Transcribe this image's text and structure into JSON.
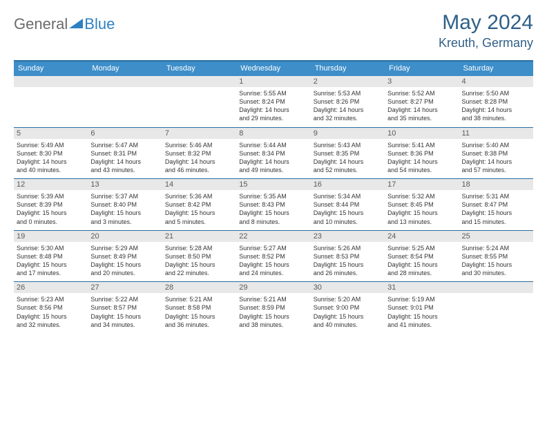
{
  "brand": {
    "part1": "General",
    "part2": "Blue"
  },
  "colors": {
    "header_bg": "#3d8ec9",
    "header_border": "#2b6ca0",
    "date_bg": "#e8e8e8",
    "title_color": "#2f5f88"
  },
  "title": "May 2024",
  "location": "Kreuth, Germany",
  "day_names": [
    "Sunday",
    "Monday",
    "Tuesday",
    "Wednesday",
    "Thursday",
    "Friday",
    "Saturday"
  ],
  "weeks": [
    [
      {
        "date": "",
        "sunrise": "",
        "sunset": "",
        "daylight1": "",
        "daylight2": ""
      },
      {
        "date": "",
        "sunrise": "",
        "sunset": "",
        "daylight1": "",
        "daylight2": ""
      },
      {
        "date": "",
        "sunrise": "",
        "sunset": "",
        "daylight1": "",
        "daylight2": ""
      },
      {
        "date": "1",
        "sunrise": "Sunrise: 5:55 AM",
        "sunset": "Sunset: 8:24 PM",
        "daylight1": "Daylight: 14 hours",
        "daylight2": "and 29 minutes."
      },
      {
        "date": "2",
        "sunrise": "Sunrise: 5:53 AM",
        "sunset": "Sunset: 8:26 PM",
        "daylight1": "Daylight: 14 hours",
        "daylight2": "and 32 minutes."
      },
      {
        "date": "3",
        "sunrise": "Sunrise: 5:52 AM",
        "sunset": "Sunset: 8:27 PM",
        "daylight1": "Daylight: 14 hours",
        "daylight2": "and 35 minutes."
      },
      {
        "date": "4",
        "sunrise": "Sunrise: 5:50 AM",
        "sunset": "Sunset: 8:28 PM",
        "daylight1": "Daylight: 14 hours",
        "daylight2": "and 38 minutes."
      }
    ],
    [
      {
        "date": "5",
        "sunrise": "Sunrise: 5:49 AM",
        "sunset": "Sunset: 8:30 PM",
        "daylight1": "Daylight: 14 hours",
        "daylight2": "and 40 minutes."
      },
      {
        "date": "6",
        "sunrise": "Sunrise: 5:47 AM",
        "sunset": "Sunset: 8:31 PM",
        "daylight1": "Daylight: 14 hours",
        "daylight2": "and 43 minutes."
      },
      {
        "date": "7",
        "sunrise": "Sunrise: 5:46 AM",
        "sunset": "Sunset: 8:32 PM",
        "daylight1": "Daylight: 14 hours",
        "daylight2": "and 46 minutes."
      },
      {
        "date": "8",
        "sunrise": "Sunrise: 5:44 AM",
        "sunset": "Sunset: 8:34 PM",
        "daylight1": "Daylight: 14 hours",
        "daylight2": "and 49 minutes."
      },
      {
        "date": "9",
        "sunrise": "Sunrise: 5:43 AM",
        "sunset": "Sunset: 8:35 PM",
        "daylight1": "Daylight: 14 hours",
        "daylight2": "and 52 minutes."
      },
      {
        "date": "10",
        "sunrise": "Sunrise: 5:41 AM",
        "sunset": "Sunset: 8:36 PM",
        "daylight1": "Daylight: 14 hours",
        "daylight2": "and 54 minutes."
      },
      {
        "date": "11",
        "sunrise": "Sunrise: 5:40 AM",
        "sunset": "Sunset: 8:38 PM",
        "daylight1": "Daylight: 14 hours",
        "daylight2": "and 57 minutes."
      }
    ],
    [
      {
        "date": "12",
        "sunrise": "Sunrise: 5:39 AM",
        "sunset": "Sunset: 8:39 PM",
        "daylight1": "Daylight: 15 hours",
        "daylight2": "and 0 minutes."
      },
      {
        "date": "13",
        "sunrise": "Sunrise: 5:37 AM",
        "sunset": "Sunset: 8:40 PM",
        "daylight1": "Daylight: 15 hours",
        "daylight2": "and 3 minutes."
      },
      {
        "date": "14",
        "sunrise": "Sunrise: 5:36 AM",
        "sunset": "Sunset: 8:42 PM",
        "daylight1": "Daylight: 15 hours",
        "daylight2": "and 5 minutes."
      },
      {
        "date": "15",
        "sunrise": "Sunrise: 5:35 AM",
        "sunset": "Sunset: 8:43 PM",
        "daylight1": "Daylight: 15 hours",
        "daylight2": "and 8 minutes."
      },
      {
        "date": "16",
        "sunrise": "Sunrise: 5:34 AM",
        "sunset": "Sunset: 8:44 PM",
        "daylight1": "Daylight: 15 hours",
        "daylight2": "and 10 minutes."
      },
      {
        "date": "17",
        "sunrise": "Sunrise: 5:32 AM",
        "sunset": "Sunset: 8:45 PM",
        "daylight1": "Daylight: 15 hours",
        "daylight2": "and 13 minutes."
      },
      {
        "date": "18",
        "sunrise": "Sunrise: 5:31 AM",
        "sunset": "Sunset: 8:47 PM",
        "daylight1": "Daylight: 15 hours",
        "daylight2": "and 15 minutes."
      }
    ],
    [
      {
        "date": "19",
        "sunrise": "Sunrise: 5:30 AM",
        "sunset": "Sunset: 8:48 PM",
        "daylight1": "Daylight: 15 hours",
        "daylight2": "and 17 minutes."
      },
      {
        "date": "20",
        "sunrise": "Sunrise: 5:29 AM",
        "sunset": "Sunset: 8:49 PM",
        "daylight1": "Daylight: 15 hours",
        "daylight2": "and 20 minutes."
      },
      {
        "date": "21",
        "sunrise": "Sunrise: 5:28 AM",
        "sunset": "Sunset: 8:50 PM",
        "daylight1": "Daylight: 15 hours",
        "daylight2": "and 22 minutes."
      },
      {
        "date": "22",
        "sunrise": "Sunrise: 5:27 AM",
        "sunset": "Sunset: 8:52 PM",
        "daylight1": "Daylight: 15 hours",
        "daylight2": "and 24 minutes."
      },
      {
        "date": "23",
        "sunrise": "Sunrise: 5:26 AM",
        "sunset": "Sunset: 8:53 PM",
        "daylight1": "Daylight: 15 hours",
        "daylight2": "and 26 minutes."
      },
      {
        "date": "24",
        "sunrise": "Sunrise: 5:25 AM",
        "sunset": "Sunset: 8:54 PM",
        "daylight1": "Daylight: 15 hours",
        "daylight2": "and 28 minutes."
      },
      {
        "date": "25",
        "sunrise": "Sunrise: 5:24 AM",
        "sunset": "Sunset: 8:55 PM",
        "daylight1": "Daylight: 15 hours",
        "daylight2": "and 30 minutes."
      }
    ],
    [
      {
        "date": "26",
        "sunrise": "Sunrise: 5:23 AM",
        "sunset": "Sunset: 8:56 PM",
        "daylight1": "Daylight: 15 hours",
        "daylight2": "and 32 minutes."
      },
      {
        "date": "27",
        "sunrise": "Sunrise: 5:22 AM",
        "sunset": "Sunset: 8:57 PM",
        "daylight1": "Daylight: 15 hours",
        "daylight2": "and 34 minutes."
      },
      {
        "date": "28",
        "sunrise": "Sunrise: 5:21 AM",
        "sunset": "Sunset: 8:58 PM",
        "daylight1": "Daylight: 15 hours",
        "daylight2": "and 36 minutes."
      },
      {
        "date": "29",
        "sunrise": "Sunrise: 5:21 AM",
        "sunset": "Sunset: 8:59 PM",
        "daylight1": "Daylight: 15 hours",
        "daylight2": "and 38 minutes."
      },
      {
        "date": "30",
        "sunrise": "Sunrise: 5:20 AM",
        "sunset": "Sunset: 9:00 PM",
        "daylight1": "Daylight: 15 hours",
        "daylight2": "and 40 minutes."
      },
      {
        "date": "31",
        "sunrise": "Sunrise: 5:19 AM",
        "sunset": "Sunset: 9:01 PM",
        "daylight1": "Daylight: 15 hours",
        "daylight2": "and 41 minutes."
      },
      {
        "date": "",
        "sunrise": "",
        "sunset": "",
        "daylight1": "",
        "daylight2": ""
      }
    ]
  ]
}
